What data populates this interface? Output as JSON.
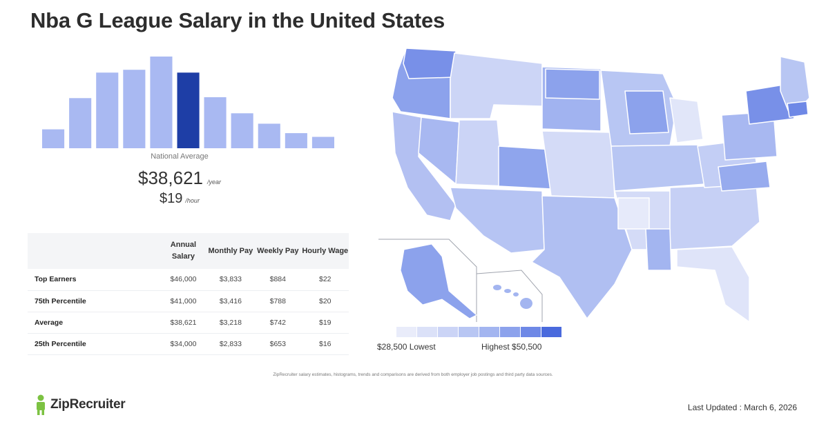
{
  "page": {
    "title": "Nba G League Salary in the United States"
  },
  "summary": {
    "label": "National Average",
    "annual": "$38,621",
    "annual_unit": "/year",
    "hourly": "$19",
    "hourly_unit": "/hour"
  },
  "chart_data": {
    "type": "bar",
    "title": "",
    "values": [
      20,
      53,
      80,
      83,
      97,
      80,
      54,
      37,
      26,
      16,
      12
    ],
    "highlight_index": 5,
    "colors": {
      "bar": "#a9b9f2",
      "highlight": "#1e3ea6"
    }
  },
  "table": {
    "headers": [
      "Annual Salary",
      "Monthly Pay",
      "Weekly Pay",
      "Hourly Wage"
    ],
    "rows": [
      {
        "label": "Top Earners",
        "values": [
          "$46,000",
          "$3,833",
          "$884",
          "$22"
        ]
      },
      {
        "label": "75th Percentile",
        "values": [
          "$41,000",
          "$3,416",
          "$788",
          "$20"
        ]
      },
      {
        "label": "Average",
        "values": [
          "$38,621",
          "$3,218",
          "$742",
          "$19"
        ]
      },
      {
        "label": "25th Percentile",
        "values": [
          "$34,000",
          "$2,833",
          "$653",
          "$16"
        ]
      }
    ]
  },
  "map": {
    "legend_low": "$28,500 Lowest",
    "legend_high": "Highest $50,500",
    "scale_colors": [
      "#e9ecfa",
      "#dbe1f8",
      "#cbd4f6",
      "#b8c6f3",
      "#a3b5f0",
      "#8ca2ec",
      "#6e88e6",
      "#4a6add"
    ]
  },
  "footer": {
    "note": "ZipRecruiter salary estimates, histograms, trends and comparisons are derived from both employer job postings and third party data sources.",
    "brand": "ZipRecruiter",
    "updated": "Last Updated : March 6, 2026"
  }
}
